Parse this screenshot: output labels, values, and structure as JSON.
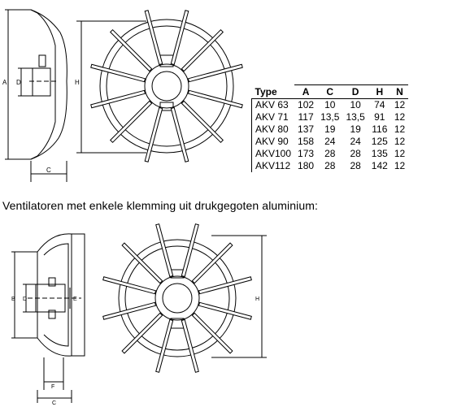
{
  "table": {
    "headers": [
      "Type",
      "A",
      "C",
      "D",
      "H",
      "N"
    ],
    "rows": [
      [
        "AKV 63",
        "102",
        "10",
        "10",
        "74",
        "12"
      ],
      [
        "AKV 71",
        "117",
        "13,5",
        "13,5",
        "91",
        "12"
      ],
      [
        "AKV 80",
        "137",
        "19",
        "19",
        "116",
        "12"
      ],
      [
        "AKV 90",
        "158",
        "24",
        "24",
        "125",
        "12"
      ],
      [
        "AKV100",
        "173",
        "28",
        "28",
        "135",
        "12"
      ],
      [
        "AKV112",
        "180",
        "28",
        "28",
        "142",
        "12"
      ]
    ]
  },
  "caption": "Ventilatoren met enkele klemming uit drukgegoten aluminium:",
  "drawing1": {
    "label_a": "A",
    "label_d": "D",
    "label_c": "C",
    "label_h": "H"
  },
  "drawing2": {
    "label_b": "B",
    "label_d": "D",
    "label_e": "E",
    "label_f": "F",
    "label_c": "C",
    "label_h": "H"
  }
}
